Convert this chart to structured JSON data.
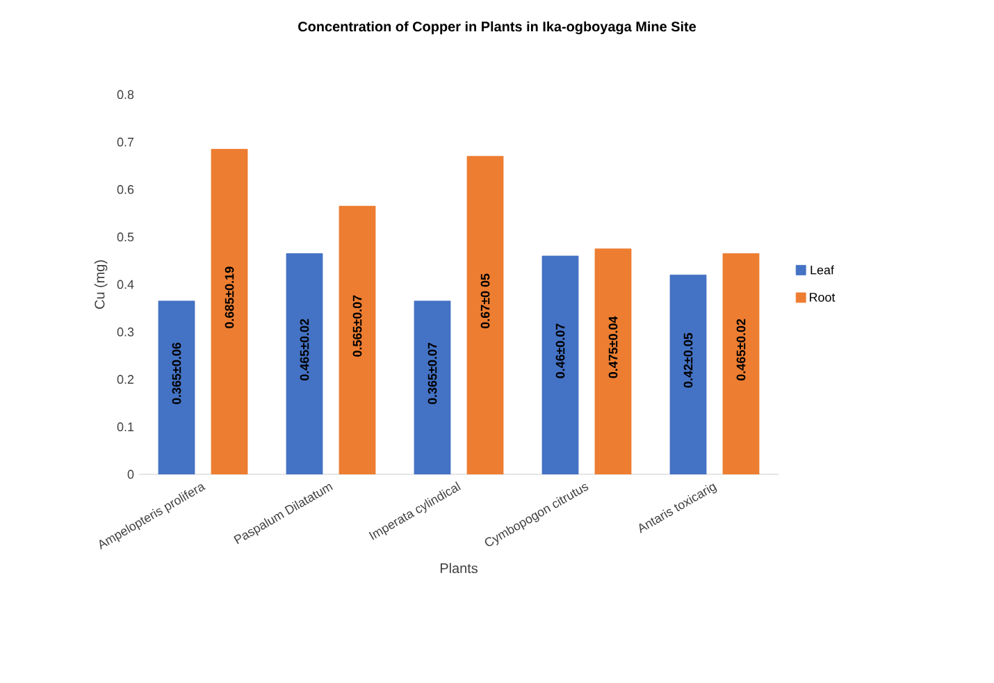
{
  "chart_data": {
    "type": "bar",
    "title": "Concentration of Copper in Plants in Ika-ogboyaga  Mine Site",
    "xlabel": "Plants",
    "ylabel": "Cu (mg)",
    "categories": [
      "Ampelopteris prolifera",
      "Paspalum Dilatatum",
      "Imperata cylindical",
      "Cymbopogon citrutus",
      "Antaris toxicarig"
    ],
    "series": [
      {
        "name": "Leaf",
        "color": "#4472c4",
        "values": [
          0.365,
          0.465,
          0.365,
          0.46,
          0.42
        ],
        "value_labels": [
          "0.365±0.06",
          "0.465±0.02",
          "0.365±0.07",
          "0.46±0.07",
          "0.42±0.05"
        ]
      },
      {
        "name": "Root",
        "color": "#ed7d31",
        "values": [
          0.685,
          0.565,
          0.67,
          0.475,
          0.465
        ],
        "value_labels": [
          "0.685±0.19",
          "0.565±0.07",
          "0.67±0 05",
          "0.475±0.04",
          "0.465±0.02"
        ]
      }
    ],
    "ylim": [
      0,
      0.8
    ],
    "yticks": [
      0,
      0.1,
      0.2,
      0.3,
      0.4,
      0.5,
      0.6,
      0.7,
      0.8
    ],
    "grid": false,
    "legend": "right"
  }
}
